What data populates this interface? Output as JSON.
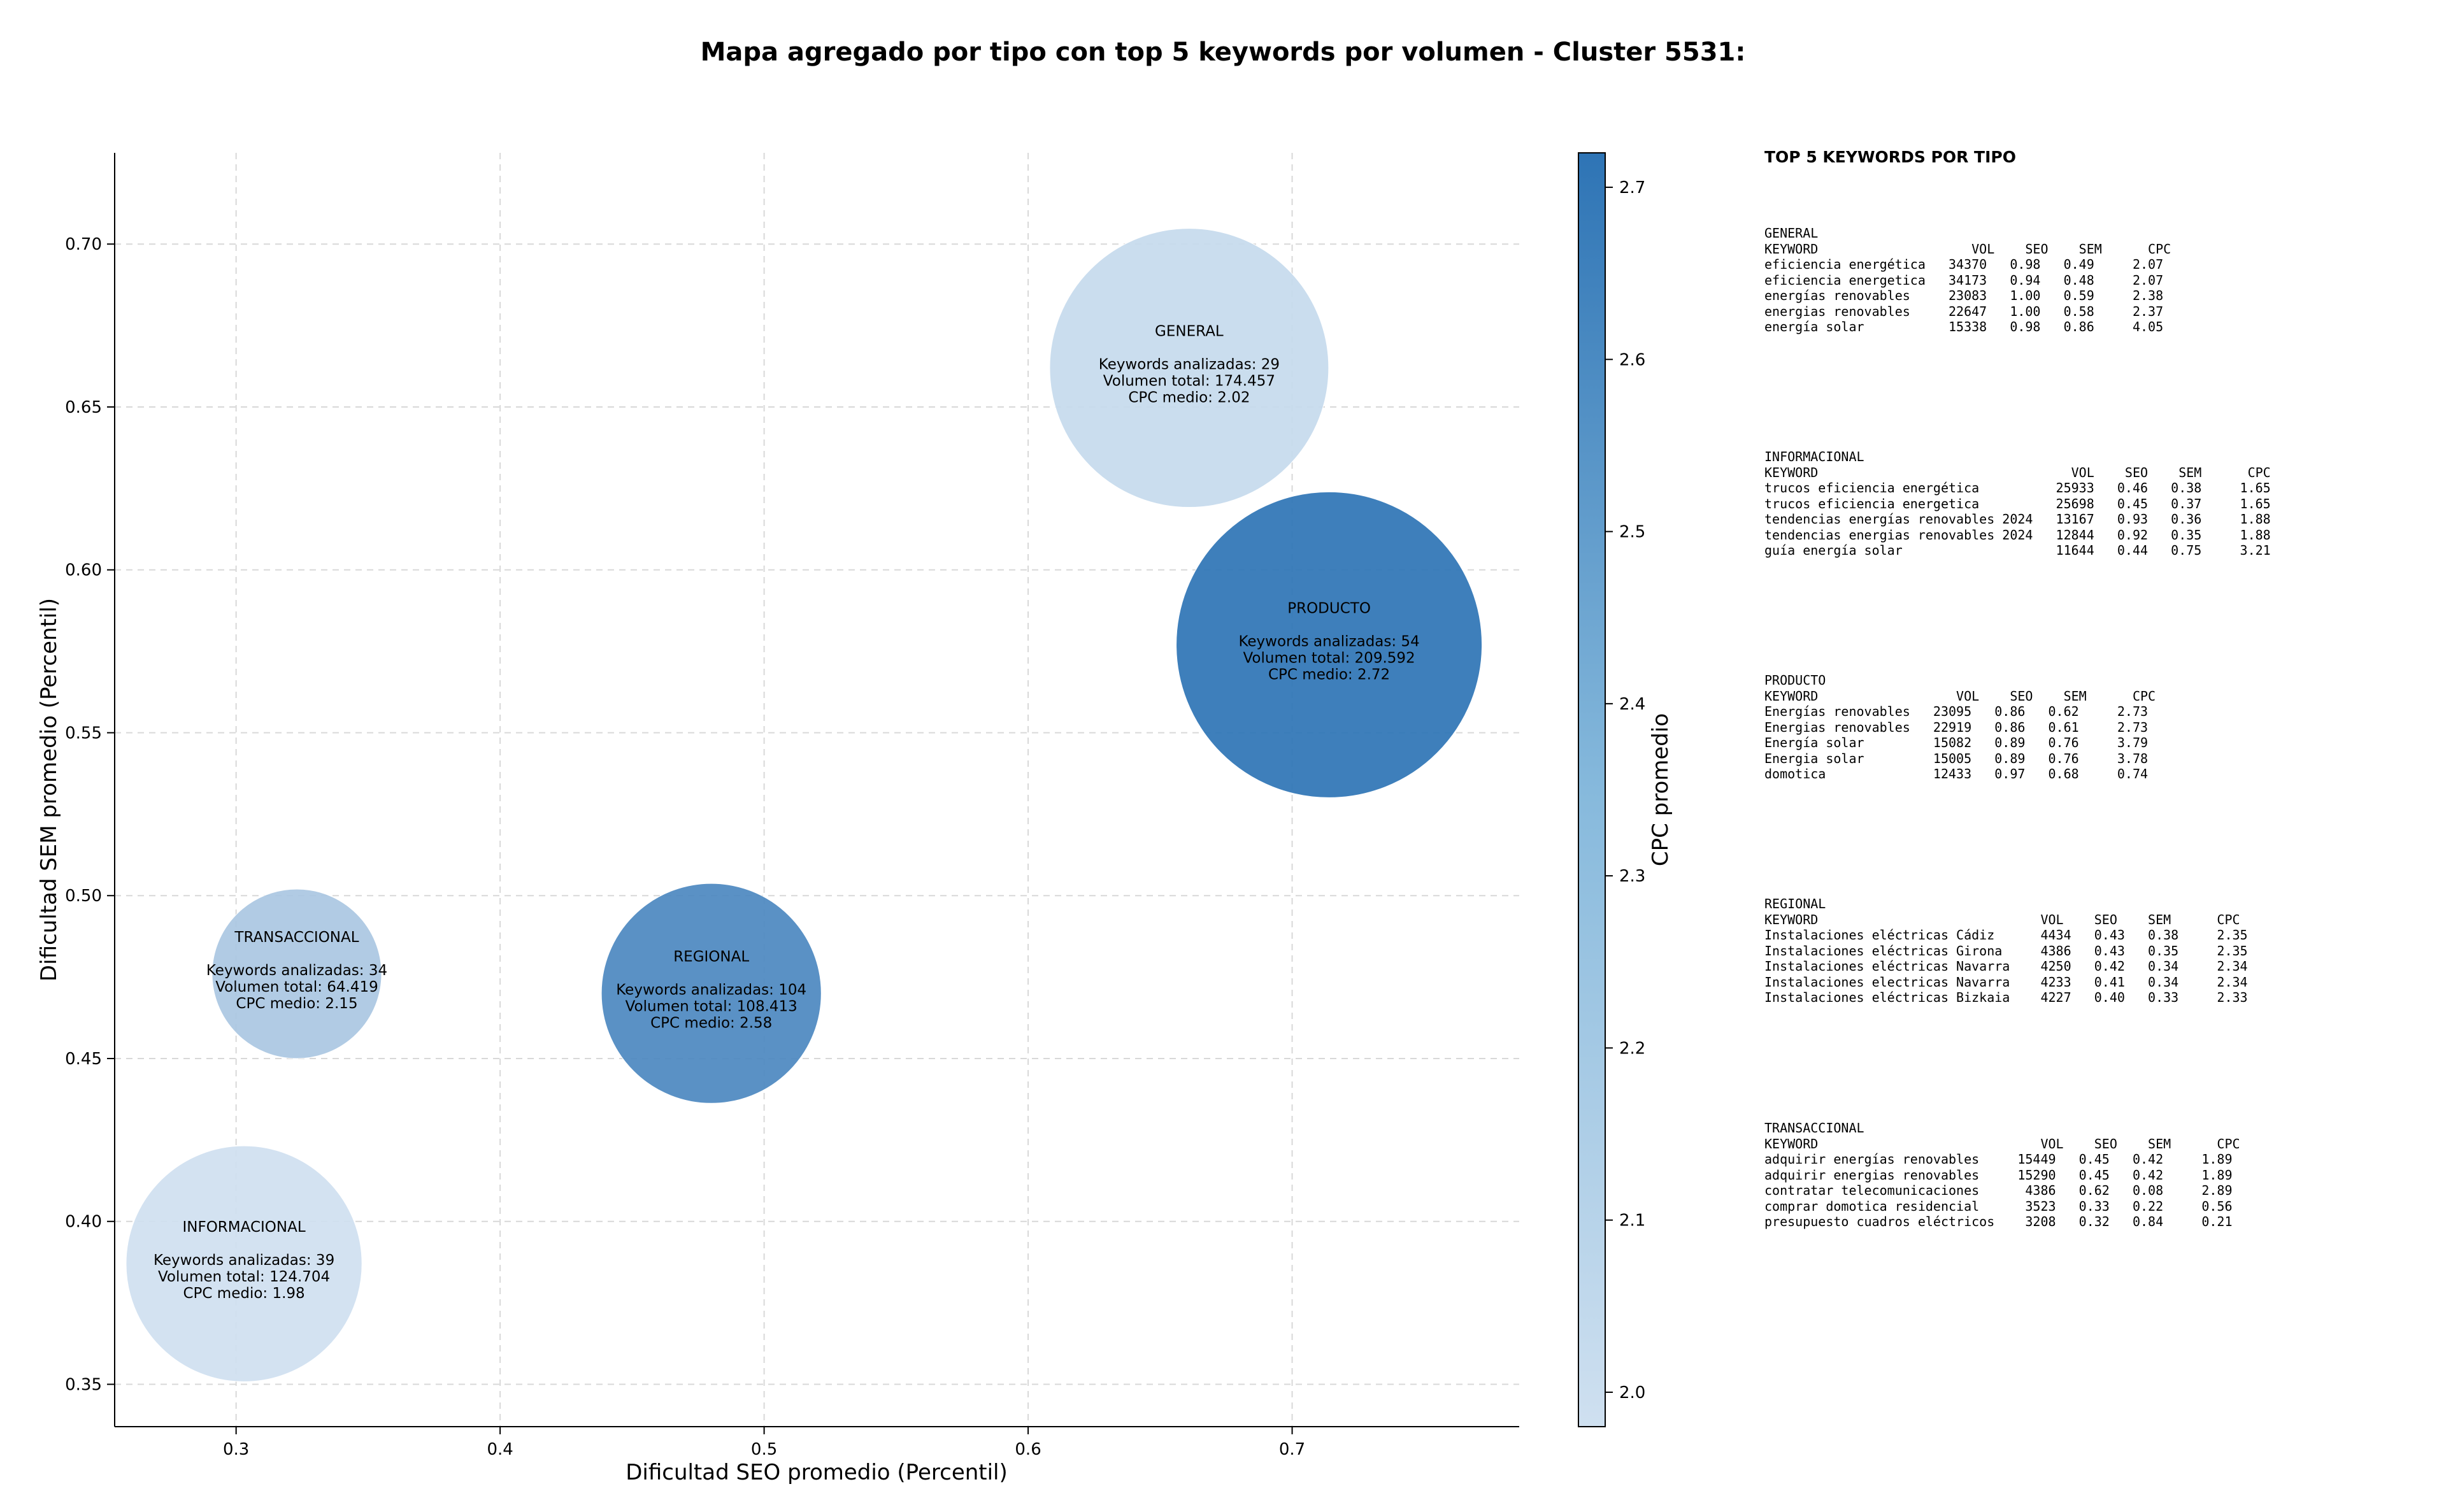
{
  "chart_data": {
    "type": "scatter",
    "title": "Mapa agregado por tipo con top 5 keywords por volumen - Cluster 5531:",
    "xlabel": "Dificultad SEO promedio (Percentil)",
    "ylabel": "Dificultad SEM promedio (Percentil)",
    "xlim": [
      0.254,
      0.786
    ],
    "ylim": [
      0.337,
      0.728
    ],
    "x_ticks": [
      "0.3",
      "0.4",
      "0.5",
      "0.6",
      "0.7"
    ],
    "y_ticks": [
      "0.35",
      "0.40",
      "0.45",
      "0.50",
      "0.55",
      "0.60",
      "0.65",
      "0.70"
    ],
    "grid": true,
    "colorbar": {
      "label": "CPC promedio",
      "min": 1.98,
      "max": 2.72,
      "ticks": [
        "2.0",
        "2.1",
        "2.2",
        "2.3",
        "2.4",
        "2.5",
        "2.6",
        "2.7"
      ],
      "color_low": "#cfe0f0",
      "color_high": "#2e74b5"
    },
    "points": [
      {
        "label": "GENERAL",
        "x": 0.661,
        "y": 0.662,
        "keywords_label": "Keywords analizadas: 29",
        "volume_label": "Volumen total: 174.457",
        "cpc_label": "CPC medio: 2.02",
        "volume": 174457,
        "cpc": 2.02
      },
      {
        "label": "PRODUCTO",
        "x": 0.714,
        "y": 0.577,
        "keywords_label": "Keywords analizadas: 54",
        "volume_label": "Volumen total: 209.592",
        "cpc_label": "CPC medio: 2.72",
        "volume": 209592,
        "cpc": 2.72
      },
      {
        "label": "TRANSACCIONAL",
        "x": 0.323,
        "y": 0.476,
        "keywords_label": "Keywords analizadas: 34",
        "volume_label": "Volumen total: 64.419",
        "cpc_label": "CPC medio: 2.15",
        "volume": 64419,
        "cpc": 2.15
      },
      {
        "label": "REGIONAL",
        "x": 0.48,
        "y": 0.47,
        "keywords_label": "Keywords analizadas: 104",
        "volume_label": "Volumen total: 108.413",
        "cpc_label": "CPC medio: 2.58",
        "volume": 108413,
        "cpc": 2.58
      },
      {
        "label": "INFORMACIONAL",
        "x": 0.303,
        "y": 0.387,
        "keywords_label": "Keywords analizadas: 39",
        "volume_label": "Volumen total: 124.704",
        "cpc_label": "CPC medio: 1.98",
        "volume": 124704,
        "cpc": 1.98
      }
    ]
  },
  "keywords_panel": {
    "title": "TOP 5 KEYWORDS POR TIPO",
    "groups": [
      {
        "name": "GENERAL",
        "text": "GENERAL\nKEYWORD                    VOL    SEO    SEM      CPC\neficiencia energética   34370   0.98   0.49     2.07\neficiencia energetica   34173   0.94   0.48     2.07\nenergías renovables     23083   1.00   0.59     2.38\nenergias renovables     22647   1.00   0.58     2.37\nenergía solar           15338   0.98   0.86     4.05"
      },
      {
        "name": "INFORMACIONAL",
        "text": "INFORMACIONAL\nKEYWORD                                 VOL    SEO    SEM      CPC\ntrucos eficiencia energética          25933   0.46   0.38     1.65\ntrucos eficiencia energetica          25698   0.45   0.37     1.65\ntendencias energías renovables 2024   13167   0.93   0.36     1.88\ntendencias energias renovables 2024   12844   0.92   0.35     1.88\nguía energía solar                    11644   0.44   0.75     3.21"
      },
      {
        "name": "PRODUCTO",
        "text": "PRODUCTO\nKEYWORD                  VOL    SEO    SEM      CPC\nEnergías renovables   23095   0.86   0.62     2.73\nEnergias renovables   22919   0.86   0.61     2.73\nEnergía solar         15082   0.89   0.76     3.79\nEnergia solar         15005   0.89   0.76     3.78\ndomotica              12433   0.97   0.68     0.74"
      },
      {
        "name": "REGIONAL",
        "text": "REGIONAL\nKEYWORD                             VOL    SEO    SEM      CPC\nInstalaciones eléctricas Cádiz      4434   0.43   0.38     2.35\nInstalaciones eléctricas Girona     4386   0.43   0.35     2.35\nInstalaciones eléctricas Navarra    4250   0.42   0.34     2.34\nInstalaciones electricas Navarra    4233   0.41   0.34     2.34\nInstalaciones eléctricas Bizkaia    4227   0.40   0.33     2.33"
      },
      {
        "name": "TRANSACCIONAL",
        "text": "TRANSACCIONAL\nKEYWORD                             VOL    SEO    SEM      CPC\nadquirir energías renovables     15449   0.45   0.42     1.89\nadquirir energias renovables     15290   0.45   0.42     1.89\ncontratar telecomunicaciones      4386   0.62   0.08     2.89\ncomprar domotica residencial      3523   0.33   0.22     0.56\npresupuesto cuadros eléctricos    3208   0.32   0.84     0.21"
      }
    ]
  }
}
